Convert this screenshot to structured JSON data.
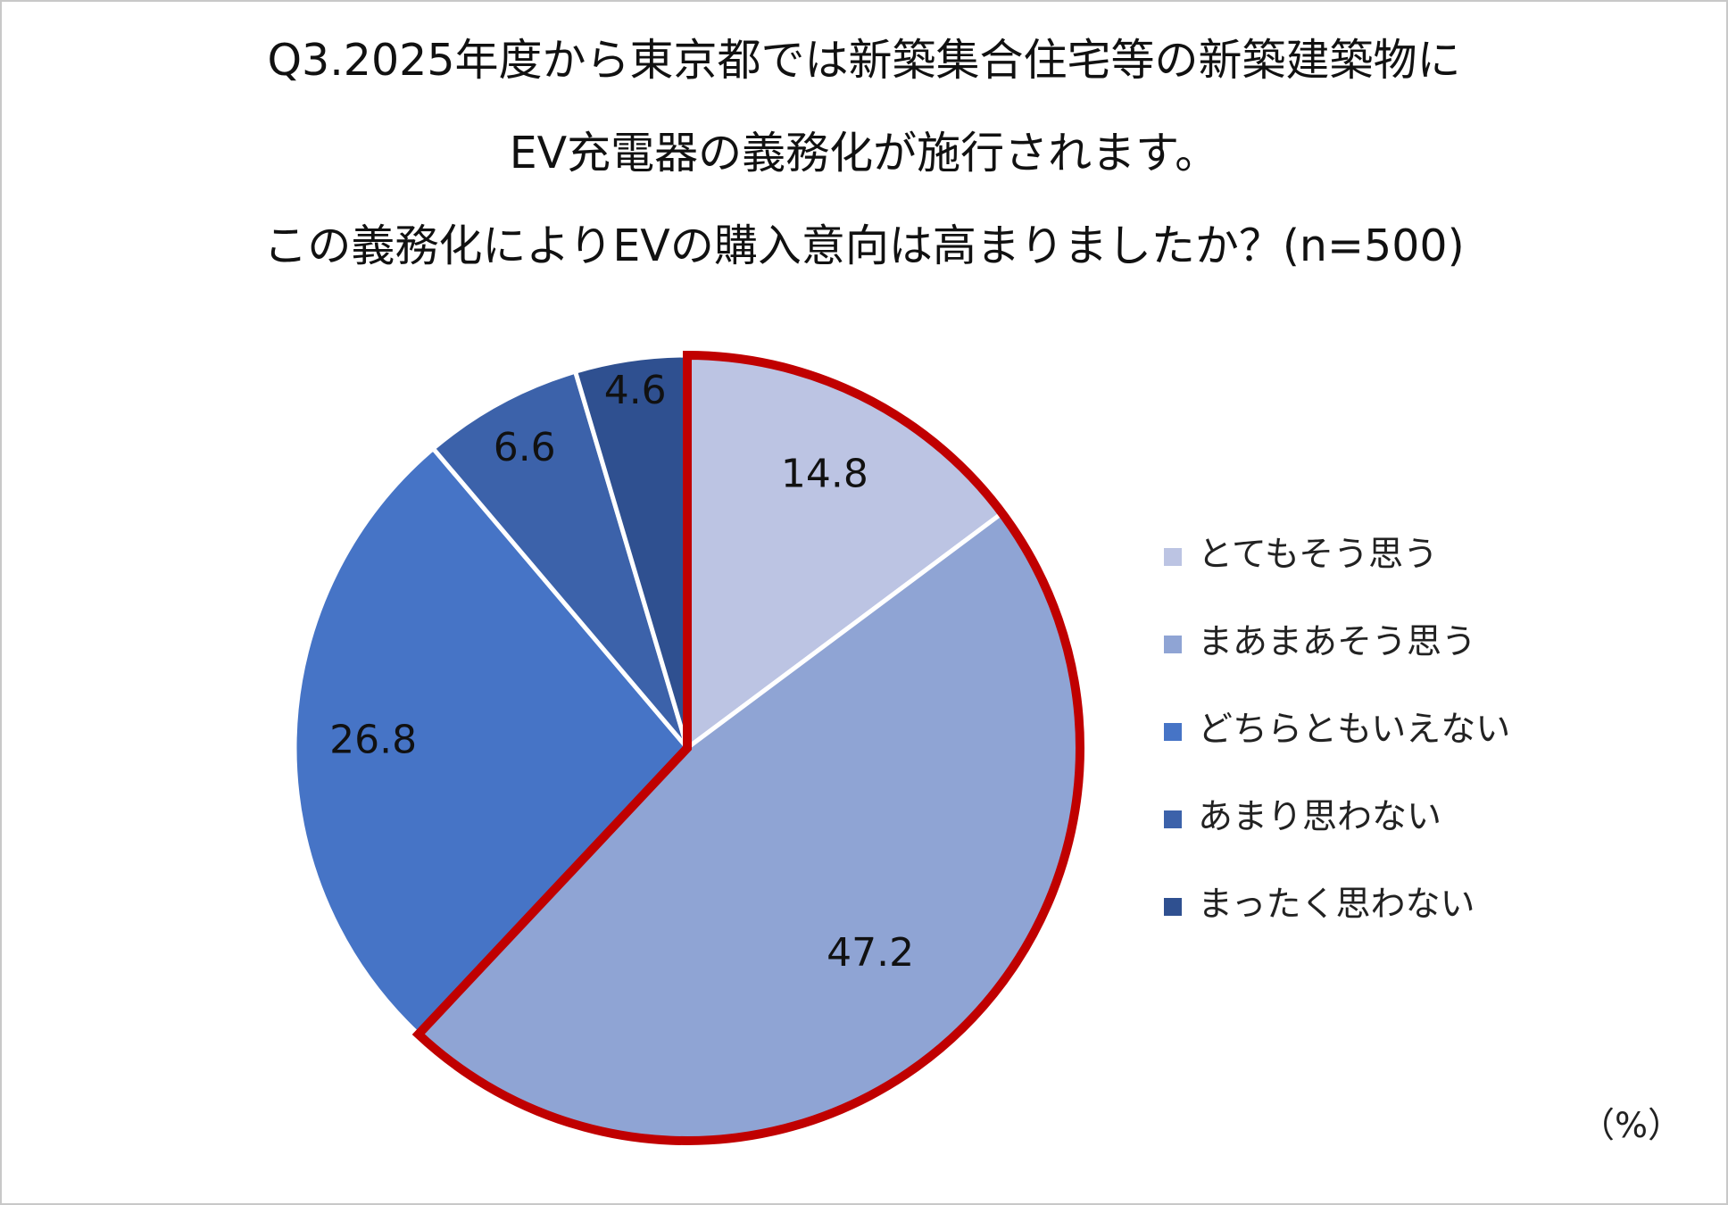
{
  "chart_data": {
    "type": "pie",
    "title_lines": [
      "Q3.2025年度から東京都では新築集合住宅等の新築建築物に",
      "EV充電器の義務化が施行されます。",
      "この義務化によりEVの購入意向は高まりましたか？(n=500)"
    ],
    "unit": "（%）",
    "start_angle": "12 o'clock",
    "direction": "clockwise",
    "legend_position": "right",
    "slices": [
      {
        "label": "とてもそう思う",
        "value": 14.8,
        "display": "14.8",
        "color": "#BCC4E3"
      },
      {
        "label": "まあまあそう思う",
        "value": 47.2,
        "display": "47.2",
        "color": "#8FA4D4"
      },
      {
        "label": "どちらともいえない",
        "value": 26.8,
        "display": "26.8",
        "color": "#4674C6"
      },
      {
        "label": "あまり思わない",
        "value": 6.6,
        "display": "6.6",
        "color": "#3C62AA"
      },
      {
        "label": "まったく思わない",
        "value": 4.6,
        "display": "4.6",
        "color": "#2F5090"
      }
    ],
    "highlight": {
      "slices": [
        "とてもそう思う",
        "まあまあそう思う"
      ],
      "outline_color": "#C00000"
    }
  }
}
